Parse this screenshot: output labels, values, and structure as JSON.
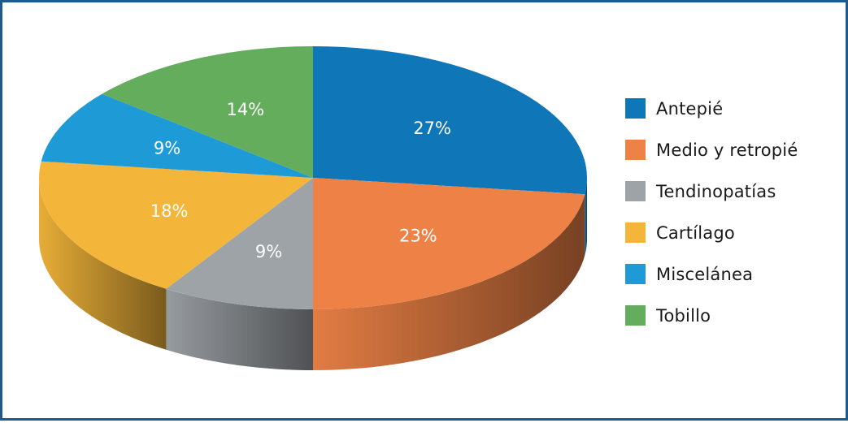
{
  "chart_data": {
    "type": "pie",
    "style": "3d",
    "title": "",
    "slices": [
      {
        "label": "Antepié",
        "value": 27,
        "value_label": "27%",
        "color": "#0f76b8"
      },
      {
        "label": "Medio y retropié",
        "value": 23,
        "value_label": "23%",
        "color": "#ee8246"
      },
      {
        "label": "Tendinopatías",
        "value": 9,
        "value_label": "9%",
        "color": "#9ea3a8"
      },
      {
        "label": "Cartílago",
        "value": 18,
        "value_label": "18%",
        "color": "#f3b63a"
      },
      {
        "label": "Miscelánea",
        "value": 9,
        "value_label": "9%",
        "color": "#1e9bd7"
      },
      {
        "label": "Tobillo",
        "value": 14,
        "value_label": "14%",
        "color": "#63ad5d"
      }
    ],
    "legend_position": "right"
  },
  "colors": {
    "border": "#1f5a8c"
  }
}
